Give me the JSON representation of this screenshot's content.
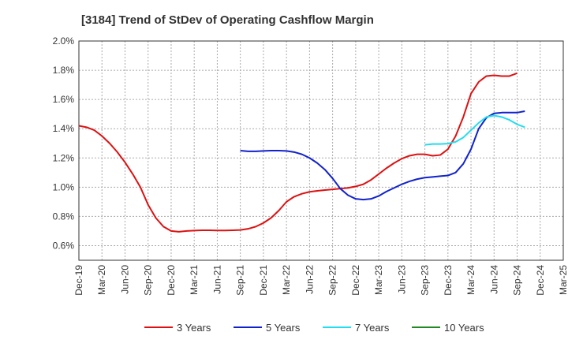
{
  "chart_data": {
    "type": "line",
    "title": "[3184]  Trend of StDev of Operating Cashflow Margin",
    "xlabel": "",
    "ylabel": "",
    "ylim": [
      0.5,
      2.0
    ],
    "yticks": [
      "0.6%",
      "0.8%",
      "1.0%",
      "1.2%",
      "1.4%",
      "1.6%",
      "1.8%",
      "2.0%"
    ],
    "ytick_values": [
      0.6,
      0.8,
      1.0,
      1.2,
      1.4,
      1.6,
      1.8,
      2.0
    ],
    "xticks": [
      "Dec-19",
      "Mar-20",
      "Jun-20",
      "Sep-20",
      "Dec-20",
      "Mar-21",
      "Jun-21",
      "Sep-21",
      "Dec-21",
      "Mar-22",
      "Jun-22",
      "Sep-22",
      "Dec-22",
      "Mar-23",
      "Jun-23",
      "Sep-23",
      "Dec-23",
      "Mar-24",
      "Jun-24",
      "Sep-24",
      "Dec-24",
      "Mar-25"
    ],
    "grid": true,
    "legend_position": "bottom",
    "series": [
      {
        "name": "3 Years",
        "color": "#dd1111",
        "x_start_index": 0,
        "values": [
          1.42,
          1.41,
          1.39,
          1.35,
          1.3,
          1.24,
          1.17,
          1.09,
          1.0,
          0.88,
          0.79,
          0.73,
          0.7,
          0.695,
          0.7,
          0.703,
          0.705,
          0.705,
          0.704,
          0.704,
          0.705,
          0.707,
          0.715,
          0.73,
          0.755,
          0.79,
          0.84,
          0.9,
          0.935,
          0.955,
          0.968,
          0.975,
          0.98,
          0.985,
          0.99,
          0.995,
          1.005,
          1.02,
          1.05,
          1.09,
          1.13,
          1.165,
          1.195,
          1.215,
          1.225,
          1.225,
          1.215,
          1.22,
          1.26,
          1.35,
          1.48,
          1.64,
          1.72,
          1.76,
          1.765,
          1.76,
          1.76,
          1.78
        ]
      },
      {
        "name": "5 Years",
        "color": "#1122cc",
        "x_start_index": 21,
        "values": [
          1.25,
          1.245,
          1.245,
          1.248,
          1.25,
          1.25,
          1.248,
          1.24,
          1.225,
          1.2,
          1.165,
          1.12,
          1.06,
          0.99,
          0.945,
          0.92,
          0.915,
          0.92,
          0.94,
          0.97,
          0.995,
          1.02,
          1.04,
          1.055,
          1.065,
          1.07,
          1.075,
          1.08,
          1.1,
          1.16,
          1.26,
          1.4,
          1.475,
          1.505,
          1.51,
          1.51,
          1.51,
          1.52
        ]
      },
      {
        "name": "7 Years",
        "color": "#22ddee",
        "x_start_index": 45,
        "values": [
          1.29,
          1.295,
          1.295,
          1.298,
          1.31,
          1.34,
          1.39,
          1.44,
          1.48,
          1.49,
          1.48,
          1.46,
          1.43,
          1.41
        ]
      },
      {
        "name": "10 Years",
        "color": "#228822",
        "x_start_index": 0,
        "values": []
      }
    ]
  }
}
